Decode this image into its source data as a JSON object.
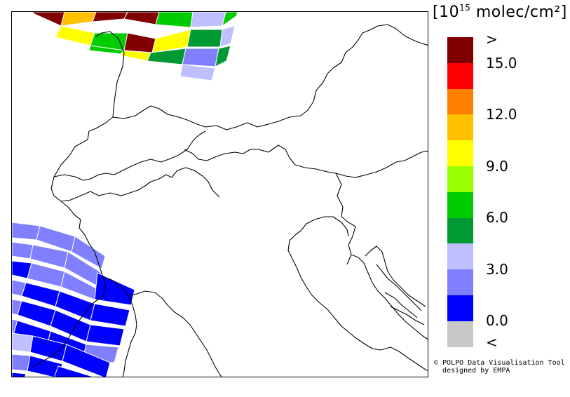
{
  "legend": {
    "title_prefix": "[10",
    "title_exponent": "15",
    "title_suffix": " molec/cm²]",
    "colors": [
      "#800000",
      "#ff0000",
      "#ff8000",
      "#ffc000",
      "#ffff00",
      "#99ff00",
      "#00cc00",
      "#009933",
      "#bfbfff",
      "#8080ff",
      "#0000ff",
      "#c8c8c8"
    ],
    "tick_labels": [
      ">",
      "15.0",
      "12.0",
      "9.0",
      "6.0",
      "3.0",
      "0.0",
      "<"
    ]
  },
  "credit": {
    "line1": "© POLPO Data Visualisation Tool",
    "line2": "  designed by EMPA"
  }
}
